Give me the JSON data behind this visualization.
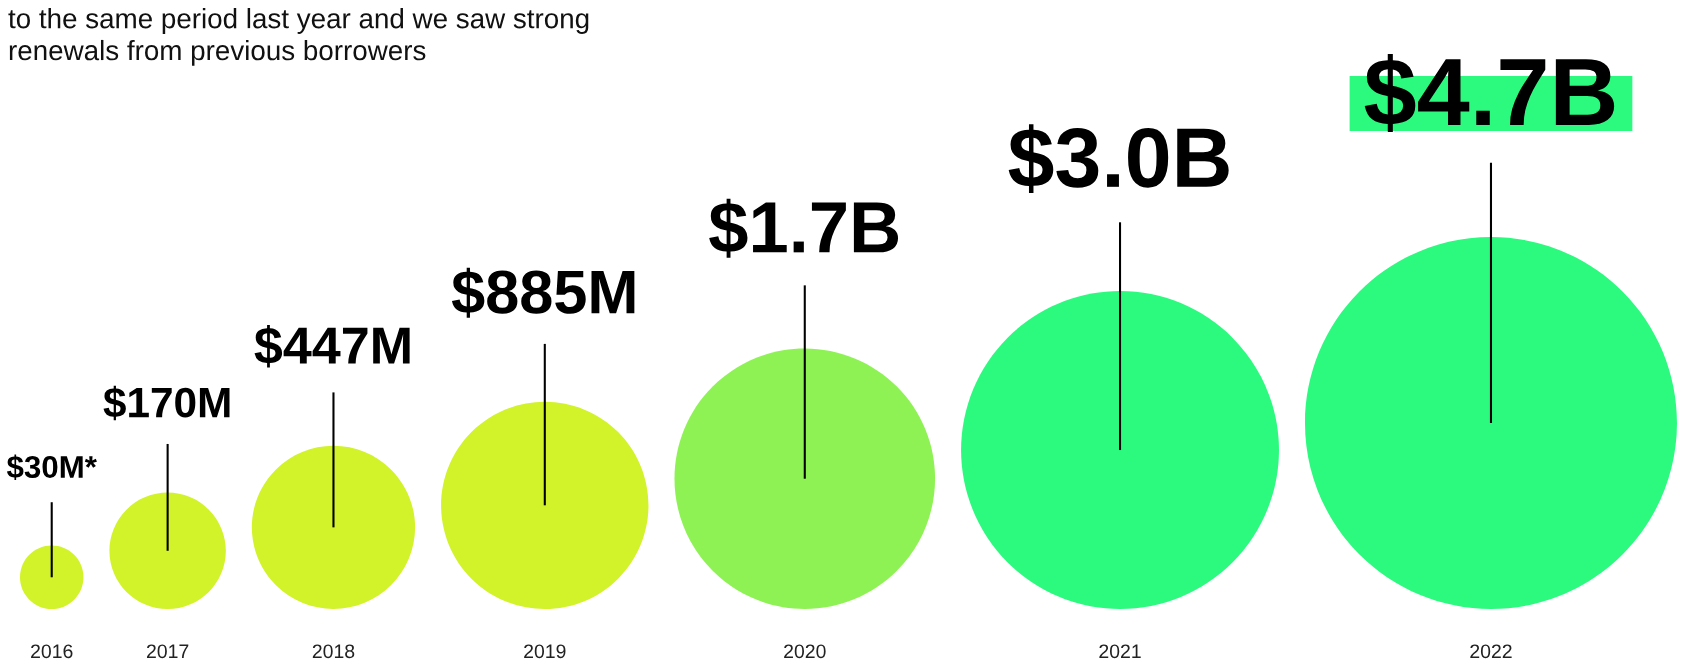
{
  "chart_data": {
    "type": "other",
    "subtitle": "to the same period last year and we saw strong\nrenewals from previous borrowers",
    "categories": [
      "2016",
      "2017",
      "2018",
      "2019",
      "2020",
      "2021",
      "2022"
    ],
    "values": [
      30000000,
      170000000,
      447000000,
      885000000,
      1700000000,
      3000000000,
      4700000000
    ],
    "value_labels": [
      "$30M*",
      "$170M",
      "$447M",
      "$885M",
      "$1.7B",
      "$3.0B",
      "$4.7B"
    ],
    "colors": [
      "#d2f22a",
      "#d2f22a",
      "#d2f22a",
      "#d2f22a",
      "#8ef255",
      "#2cfa7e",
      "#2cfa7e"
    ]
  }
}
